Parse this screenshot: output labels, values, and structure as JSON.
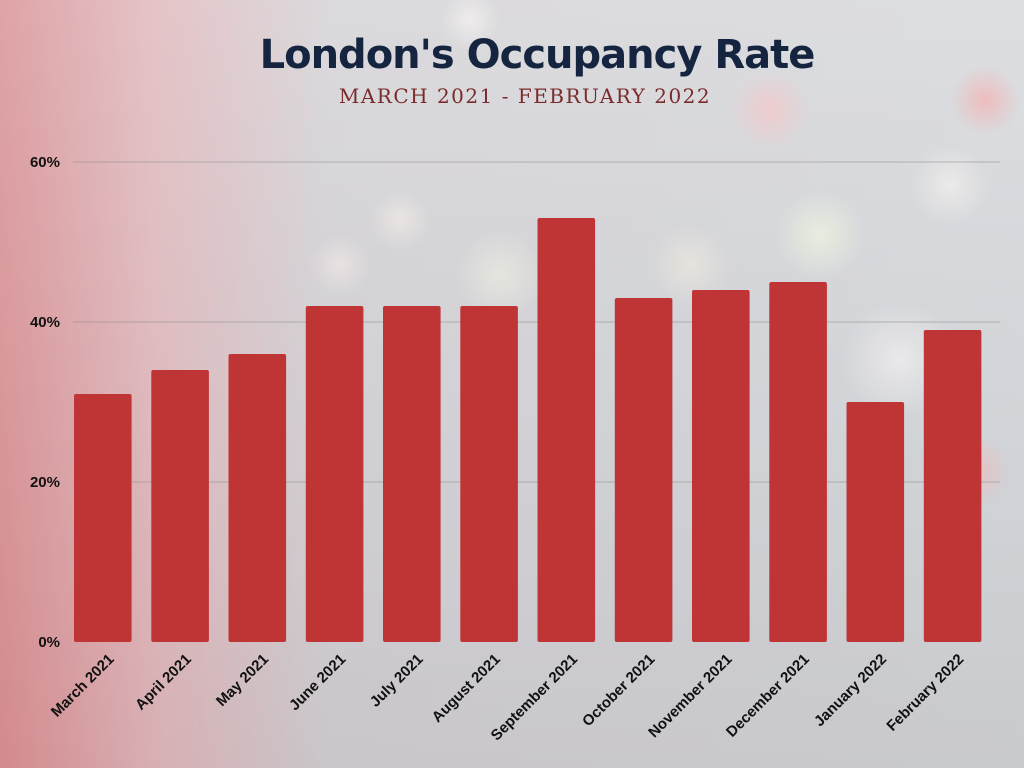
{
  "chart_data": {
    "type": "bar",
    "title": "London's Occupancy Rate",
    "subtitle": "MARCH 2021 - FEBRUARY 2022",
    "xlabel": "",
    "ylabel": "",
    "categories": [
      "March 2021",
      "April 2021",
      "May 2021",
      "June 2021",
      "July 2021",
      "August 2021",
      "September 2021",
      "October 2021",
      "November 2021",
      "December 2021",
      "January 2022",
      "February 2022"
    ],
    "values": [
      31,
      34,
      36,
      42,
      42,
      42,
      53,
      43,
      44,
      45,
      30,
      39
    ],
    "ylim": [
      0,
      60
    ],
    "yticks": [
      0,
      20,
      40,
      60
    ],
    "ytick_labels": [
      "0%",
      "20%",
      "40%",
      "60%"
    ],
    "grid": true,
    "legend": "none",
    "bar_color": "#bf3535",
    "title_color": "#15253f",
    "subtitle_color": "#7a2b2b"
  }
}
